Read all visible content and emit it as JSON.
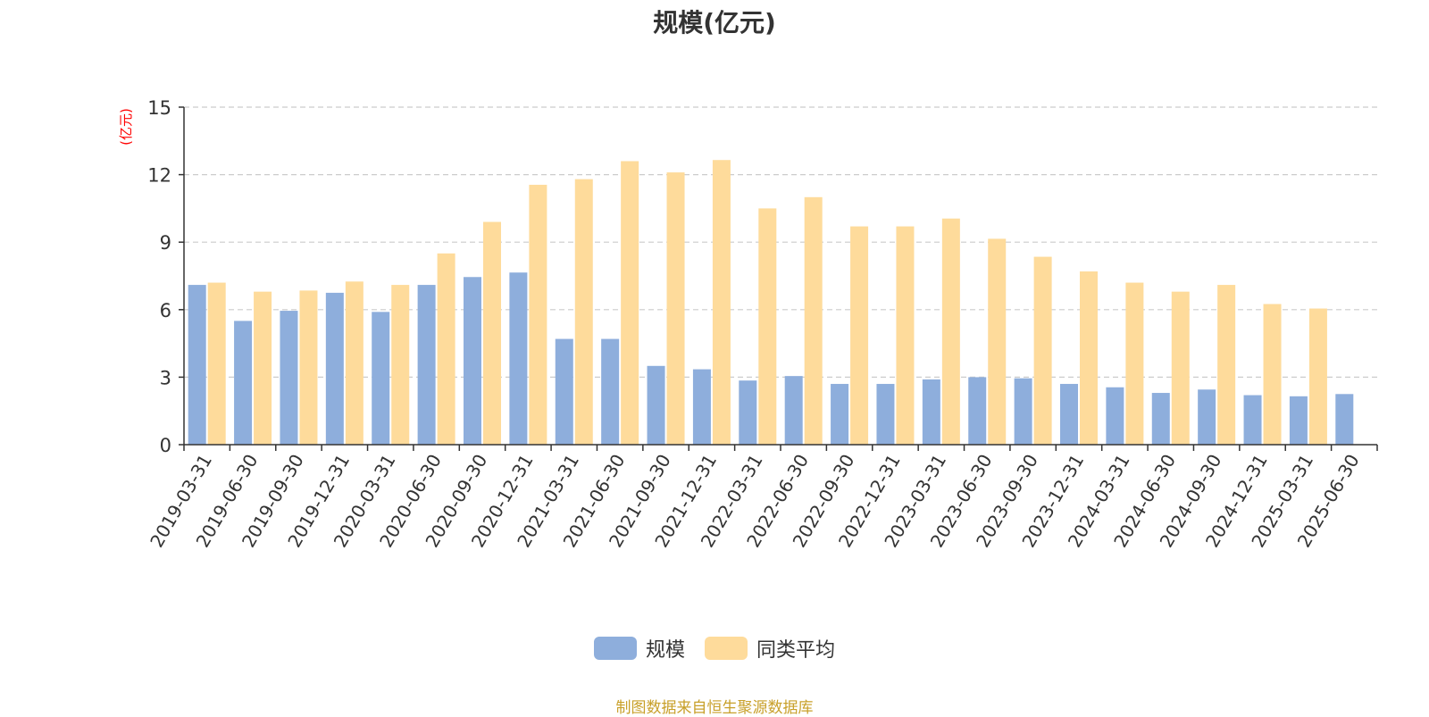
{
  "chart_data": {
    "type": "bar",
    "title": "规模(亿元)",
    "ylabel": "(亿元)",
    "xlabel": "",
    "ylim": [
      0,
      15
    ],
    "yticks": [
      0,
      3,
      6,
      9,
      12,
      15
    ],
    "grid": true,
    "legend_position": "bottom",
    "categories": [
      "2019-03-31",
      "2019-06-30",
      "2019-09-30",
      "2019-12-31",
      "2020-03-31",
      "2020-06-30",
      "2020-09-30",
      "2020-12-31",
      "2021-03-31",
      "2021-06-30",
      "2021-09-30",
      "2021-12-31",
      "2022-03-31",
      "2022-06-30",
      "2022-09-30",
      "2022-12-31",
      "2023-03-31",
      "2023-06-30",
      "2023-09-30",
      "2023-12-31",
      "2024-03-31",
      "2024-06-30",
      "2024-09-30",
      "2024-12-31",
      "2025-03-31",
      "2025-06-30"
    ],
    "series": [
      {
        "name": "规模",
        "color": "#8eaedc",
        "values": [
          7.1,
          5.5,
          5.95,
          6.75,
          5.9,
          7.1,
          7.45,
          7.65,
          4.7,
          4.7,
          3.5,
          3.35,
          2.85,
          3.05,
          2.7,
          2.7,
          2.9,
          3.0,
          2.95,
          2.7,
          2.55,
          2.3,
          2.45,
          2.2,
          2.15,
          2.25
        ]
      },
      {
        "name": "同类平均",
        "color": "#fedb9b",
        "values": [
          7.2,
          6.8,
          6.85,
          7.25,
          7.1,
          8.5,
          9.9,
          11.55,
          11.8,
          12.6,
          12.1,
          12.65,
          10.5,
          11.0,
          9.7,
          9.7,
          10.05,
          9.15,
          8.35,
          7.7,
          7.2,
          6.8,
          7.1,
          6.25,
          6.05,
          null
        ]
      }
    ]
  },
  "source_note": "制图数据来自恒生聚源数据库"
}
